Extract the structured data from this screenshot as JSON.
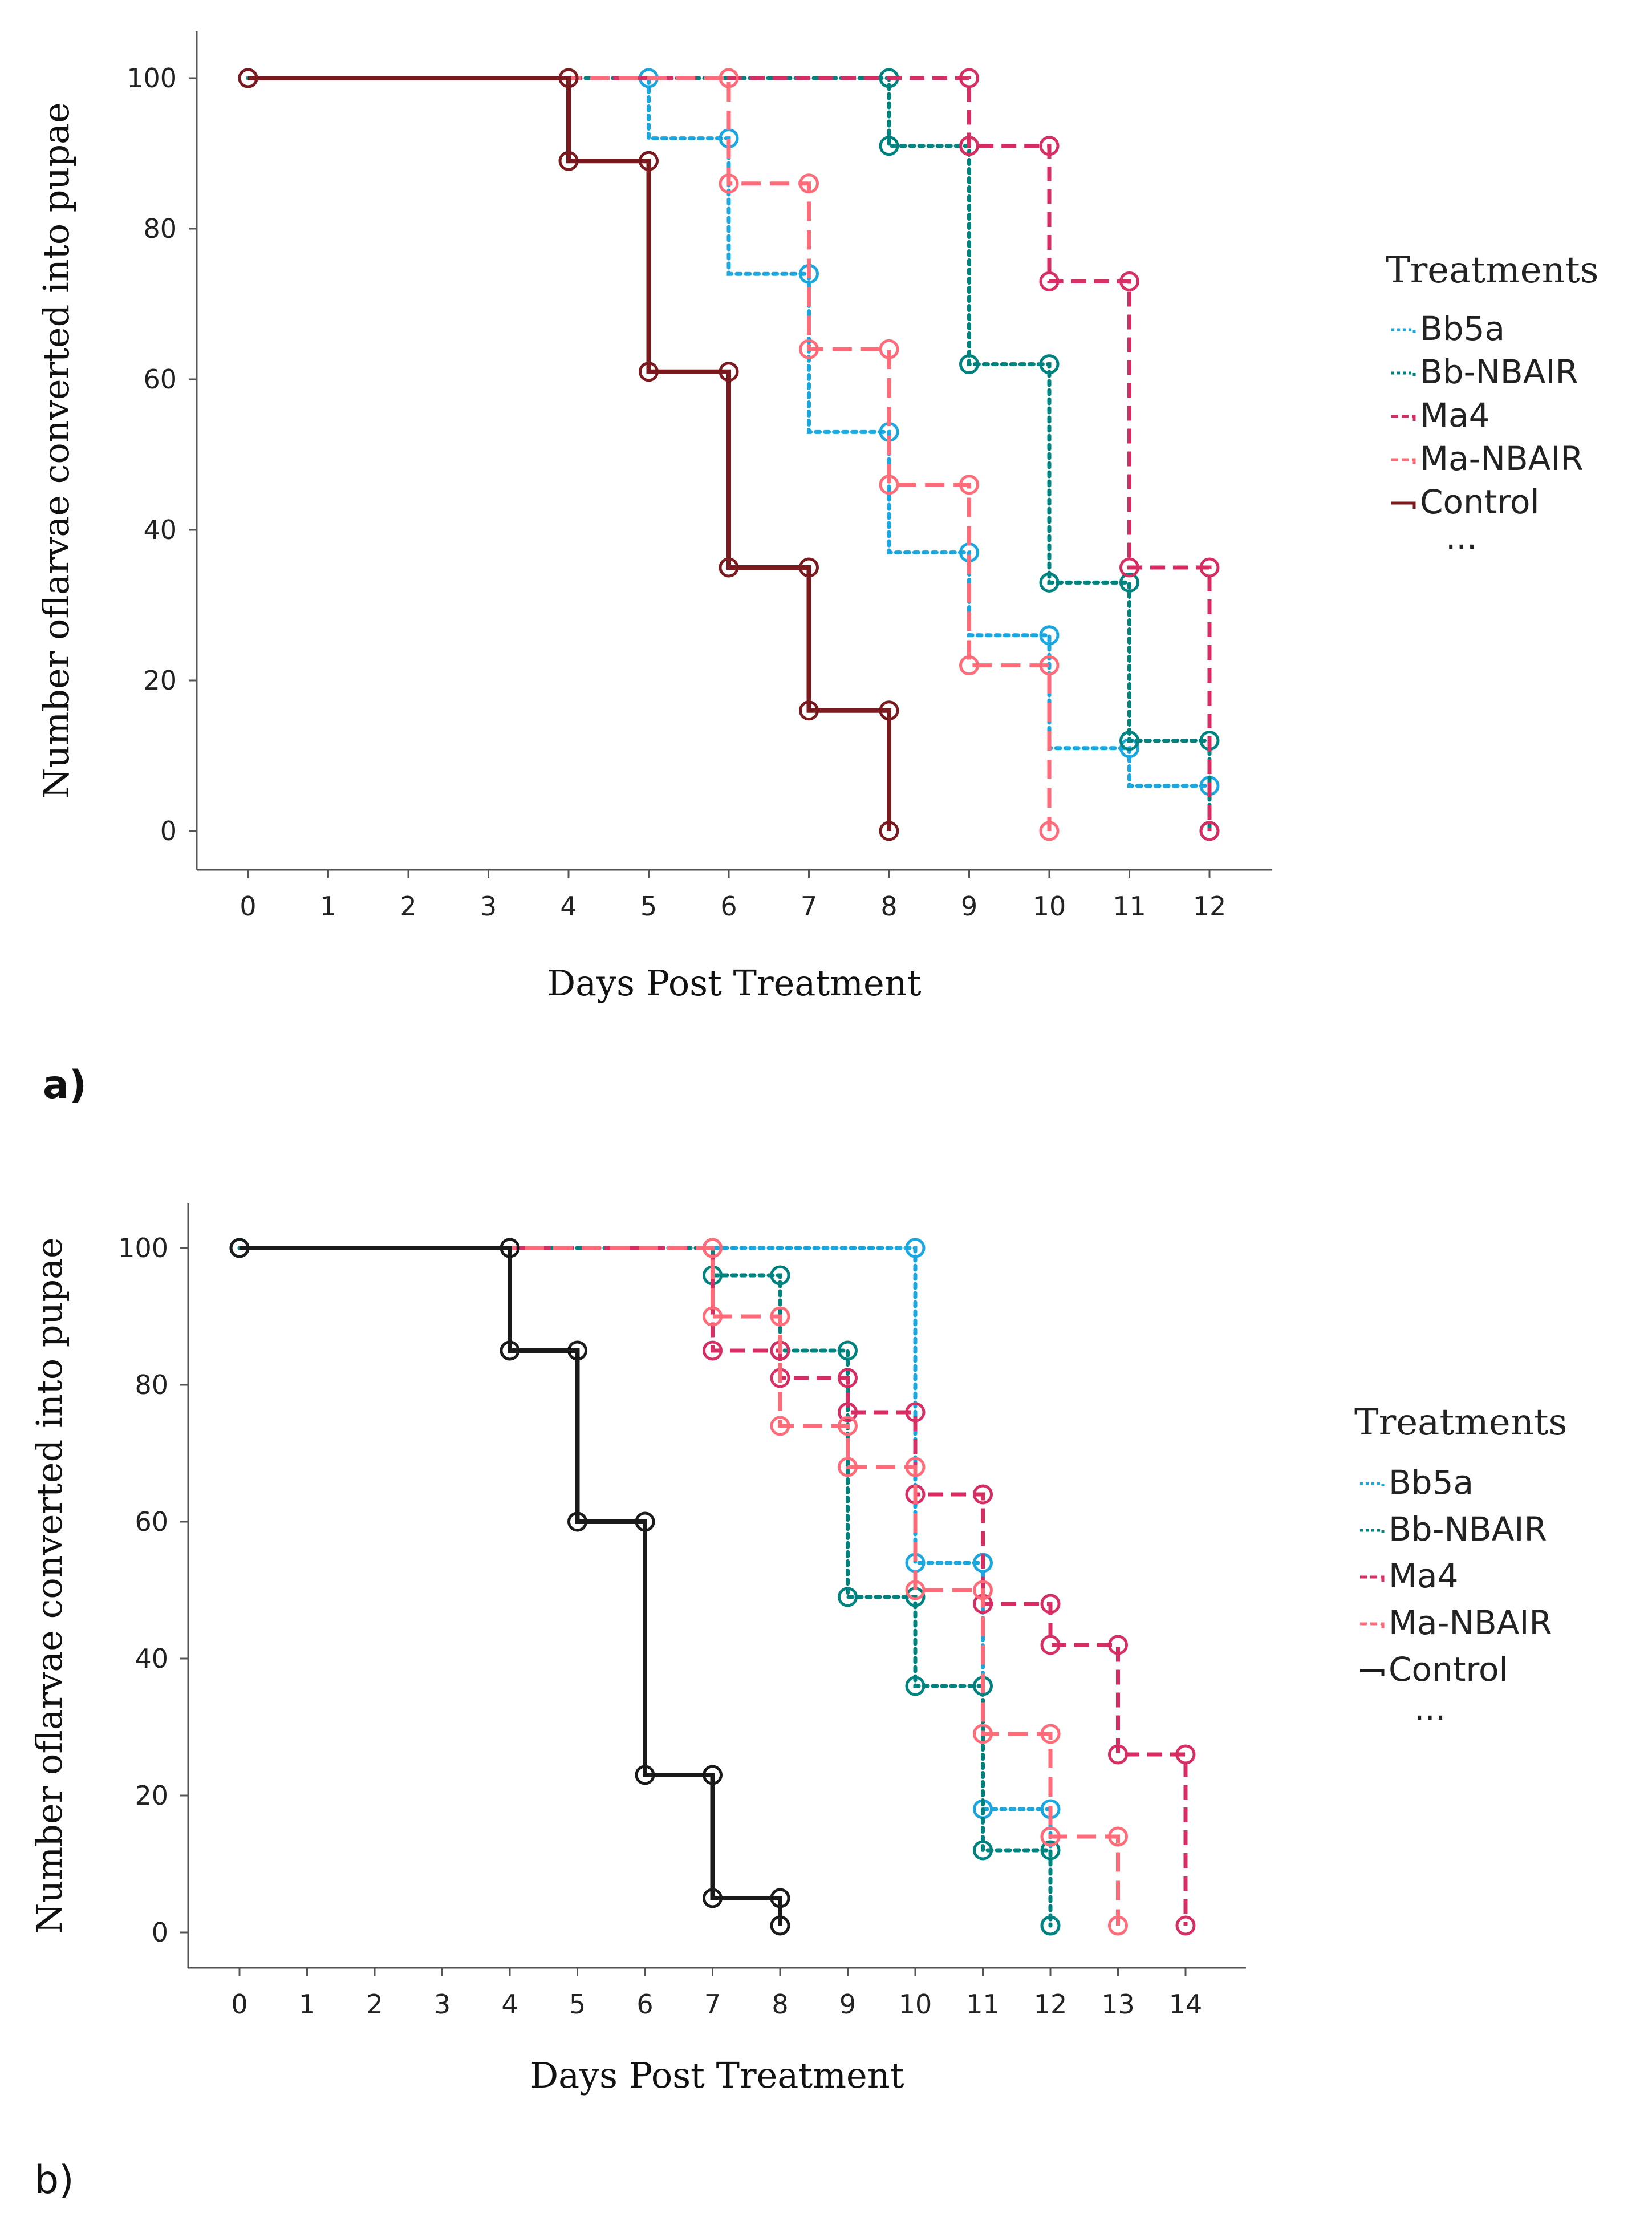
{
  "chart_data": [
    {
      "type": "line",
      "panel_label": "a)",
      "xlabel": "Days Post Treatment",
      "ylabel": "Number oflarvae converted into pupae",
      "xticks": [
        "0",
        "1",
        "2",
        "3",
        "4",
        "5",
        "6",
        "7",
        "8",
        "9",
        "10",
        "11",
        "12"
      ],
      "yticks": [
        "0",
        "20",
        "40",
        "60",
        "80",
        "100"
      ],
      "xlim": [
        0,
        12
      ],
      "ylim": [
        0,
        100
      ],
      "grid": false,
      "legend_position": "right",
      "legend_title": "Treatments",
      "legend_extra": "...",
      "series": [
        {
          "name": "Bb5a",
          "color": "#1AA7E0",
          "dash": "dotted",
          "points": [
            [
              0,
              100
            ],
            [
              5,
              100
            ],
            [
              5,
              92
            ],
            [
              6,
              92
            ],
            [
              6,
              74
            ],
            [
              7,
              74
            ],
            [
              7,
              53
            ],
            [
              8,
              53
            ],
            [
              8,
              37
            ],
            [
              9,
              37
            ],
            [
              9,
              26
            ],
            [
              10,
              26
            ],
            [
              10,
              11
            ],
            [
              11,
              11
            ],
            [
              11,
              6
            ],
            [
              12,
              6
            ],
            [
              12,
              6
            ]
          ],
          "markers": [
            [
              0,
              100
            ],
            [
              5,
              100
            ],
            [
              6,
              92
            ],
            [
              7,
              74
            ],
            [
              8,
              53
            ],
            [
              9,
              37
            ],
            [
              10,
              26
            ],
            [
              11,
              11
            ],
            [
              12,
              6
            ]
          ]
        },
        {
          "name": "Bb-NBAIR",
          "color": "#00827F",
          "dash": "dotted",
          "points": [
            [
              0,
              100
            ],
            [
              8,
              100
            ],
            [
              8,
              91
            ],
            [
              9,
              91
            ],
            [
              9,
              62
            ],
            [
              10,
              62
            ],
            [
              10,
              33
            ],
            [
              11,
              33
            ],
            [
              11,
              12
            ],
            [
              12,
              12
            ],
            [
              12,
              0
            ]
          ],
          "markers": [
            [
              0,
              100
            ],
            [
              8,
              100
            ],
            [
              8,
              91
            ],
            [
              9,
              91
            ],
            [
              9,
              62
            ],
            [
              10,
              62
            ],
            [
              10,
              33
            ],
            [
              11,
              33
            ],
            [
              11,
              12
            ],
            [
              12,
              12
            ],
            [
              12,
              0
            ]
          ]
        },
        {
          "name": "Ma4",
          "color": "#D62E62",
          "dash": "dashed",
          "points": [
            [
              0,
              100
            ],
            [
              9,
              100
            ],
            [
              9,
              91
            ],
            [
              10,
              91
            ],
            [
              10,
              73
            ],
            [
              11,
              73
            ],
            [
              11,
              35
            ],
            [
              12,
              35
            ],
            [
              12,
              0
            ]
          ],
          "markers": [
            [
              0,
              100
            ],
            [
              9,
              100
            ],
            [
              9,
              91
            ],
            [
              10,
              91
            ],
            [
              10,
              73
            ],
            [
              11,
              73
            ],
            [
              11,
              35
            ],
            [
              12,
              35
            ],
            [
              12,
              0
            ]
          ]
        },
        {
          "name": "Ma-NBAIR",
          "color": "#FF6B78",
          "dash": "longdash",
          "points": [
            [
              0,
              100
            ],
            [
              6,
              100
            ],
            [
              6,
              86
            ],
            [
              7,
              86
            ],
            [
              7,
              64
            ],
            [
              8,
              64
            ],
            [
              8,
              46
            ],
            [
              9,
              46
            ],
            [
              9,
              22
            ],
            [
              10,
              22
            ],
            [
              10,
              0
            ]
          ],
          "markers": [
            [
              6,
              100
            ],
            [
              6,
              86
            ],
            [
              7,
              86
            ],
            [
              7,
              64
            ],
            [
              8,
              64
            ],
            [
              8,
              46
            ],
            [
              9,
              46
            ],
            [
              9,
              22
            ],
            [
              10,
              22
            ],
            [
              10,
              0
            ]
          ]
        },
        {
          "name": "Control",
          "color": "#7B1A1E",
          "dash": "solid",
          "points": [
            [
              0,
              100
            ],
            [
              4,
              100
            ],
            [
              4,
              89
            ],
            [
              5,
              89
            ],
            [
              5,
              61
            ],
            [
              6,
              61
            ],
            [
              6,
              35
            ],
            [
              7,
              35
            ],
            [
              7,
              16
            ],
            [
              8,
              16
            ],
            [
              8,
              0
            ]
          ],
          "markers": [
            [
              0,
              100
            ],
            [
              4,
              100
            ],
            [
              4,
              89
            ],
            [
              5,
              89
            ],
            [
              5,
              61
            ],
            [
              6,
              61
            ],
            [
              6,
              35
            ],
            [
              7,
              35
            ],
            [
              7,
              16
            ],
            [
              8,
              16
            ],
            [
              8,
              0
            ]
          ]
        }
      ]
    },
    {
      "type": "line",
      "panel_label": "b)",
      "xlabel": "Days Post Treatment",
      "ylabel": "Number oflarvae converted into pupae",
      "xticks": [
        "0",
        "1",
        "2",
        "3",
        "4",
        "5",
        "6",
        "7",
        "8",
        "9",
        "10",
        "11",
        "12",
        "13",
        "14"
      ],
      "yticks": [
        "0",
        "20",
        "40",
        "60",
        "80",
        "100"
      ],
      "xlim": [
        0,
        14
      ],
      "ylim": [
        0,
        100
      ],
      "grid": false,
      "legend_position": "right",
      "legend_title": "Treatments",
      "legend_extra": "...",
      "series": [
        {
          "name": "Bb5a",
          "color": "#1AA7E0",
          "dash": "dotted",
          "points": [
            [
              0,
              100
            ],
            [
              10,
              100
            ],
            [
              10,
              54
            ],
            [
              11,
              54
            ],
            [
              11,
              18
            ],
            [
              12,
              18
            ],
            [
              12,
              1
            ]
          ],
          "markers": [
            [
              0,
              100
            ],
            [
              10,
              100
            ],
            [
              10,
              54
            ],
            [
              11,
              54
            ],
            [
              11,
              18
            ],
            [
              12,
              18
            ],
            [
              12,
              1
            ]
          ]
        },
        {
          "name": "Bb-NBAIR",
          "color": "#00827F",
          "dash": "dotted",
          "points": [
            [
              0,
              100
            ],
            [
              7,
              100
            ],
            [
              7,
              96
            ],
            [
              8,
              96
            ],
            [
              8,
              85
            ],
            [
              9,
              85
            ],
            [
              9,
              49
            ],
            [
              10,
              49
            ],
            [
              10,
              36
            ],
            [
              11,
              36
            ],
            [
              11,
              12
            ],
            [
              12,
              12
            ],
            [
              12,
              1
            ]
          ],
          "markers": [
            [
              0,
              100
            ],
            [
              7,
              96
            ],
            [
              8,
              96
            ],
            [
              8,
              85
            ],
            [
              9,
              85
            ],
            [
              9,
              49
            ],
            [
              10,
              49
            ],
            [
              10,
              36
            ],
            [
              11,
              36
            ],
            [
              11,
              12
            ],
            [
              12,
              12
            ],
            [
              12,
              1
            ]
          ]
        },
        {
          "name": "Ma4",
          "color": "#D62E62",
          "dash": "dashed",
          "points": [
            [
              0,
              100
            ],
            [
              7,
              100
            ],
            [
              7,
              85
            ],
            [
              8,
              85
            ],
            [
              8,
              81
            ],
            [
              9,
              81
            ],
            [
              9,
              76
            ],
            [
              10,
              76
            ],
            [
              10,
              64
            ],
            [
              11,
              64
            ],
            [
              11,
              48
            ],
            [
              12,
              48
            ],
            [
              12,
              42
            ],
            [
              13,
              42
            ],
            [
              13,
              26
            ],
            [
              14,
              26
            ],
            [
              14,
              1
            ]
          ],
          "markers": [
            [
              7,
              100
            ],
            [
              7,
              85
            ],
            [
              8,
              85
            ],
            [
              8,
              81
            ],
            [
              9,
              81
            ],
            [
              9,
              76
            ],
            [
              10,
              76
            ],
            [
              10,
              64
            ],
            [
              11,
              64
            ],
            [
              11,
              48
            ],
            [
              12,
              48
            ],
            [
              12,
              42
            ],
            [
              13,
              42
            ],
            [
              13,
              26
            ],
            [
              14,
              26
            ],
            [
              14,
              1
            ]
          ]
        },
        {
          "name": "Ma-NBAIR",
          "color": "#FF6B78",
          "dash": "longdash",
          "points": [
            [
              0,
              100
            ],
            [
              7,
              100
            ],
            [
              7,
              90
            ],
            [
              8,
              90
            ],
            [
              8,
              74
            ],
            [
              9,
              74
            ],
            [
              9,
              68
            ],
            [
              10,
              68
            ],
            [
              10,
              50
            ],
            [
              11,
              50
            ],
            [
              11,
              29
            ],
            [
              12,
              29
            ],
            [
              12,
              14
            ],
            [
              13,
              14
            ],
            [
              13,
              1
            ]
          ],
          "markers": [
            [
              7,
              100
            ],
            [
              7,
              90
            ],
            [
              8,
              90
            ],
            [
              8,
              74
            ],
            [
              9,
              74
            ],
            [
              9,
              68
            ],
            [
              10,
              68
            ],
            [
              10,
              50
            ],
            [
              11,
              50
            ],
            [
              11,
              29
            ],
            [
              12,
              29
            ],
            [
              12,
              14
            ],
            [
              13,
              14
            ],
            [
              13,
              1
            ]
          ]
        },
        {
          "name": "Control",
          "color": "#1A1A1A",
          "dash": "solid",
          "points": [
            [
              0,
              100
            ],
            [
              4,
              100
            ],
            [
              4,
              85
            ],
            [
              5,
              85
            ],
            [
              5,
              60
            ],
            [
              6,
              60
            ],
            [
              6,
              23
            ],
            [
              7,
              23
            ],
            [
              7,
              5
            ],
            [
              8,
              5
            ],
            [
              8,
              1
            ]
          ],
          "markers": [
            [
              0,
              100
            ],
            [
              4,
              100
            ],
            [
              4,
              85
            ],
            [
              5,
              85
            ],
            [
              5,
              60
            ],
            [
              6,
              60
            ],
            [
              6,
              23
            ],
            [
              7,
              23
            ],
            [
              7,
              5
            ],
            [
              8,
              5
            ],
            [
              8,
              1
            ]
          ]
        }
      ]
    }
  ]
}
